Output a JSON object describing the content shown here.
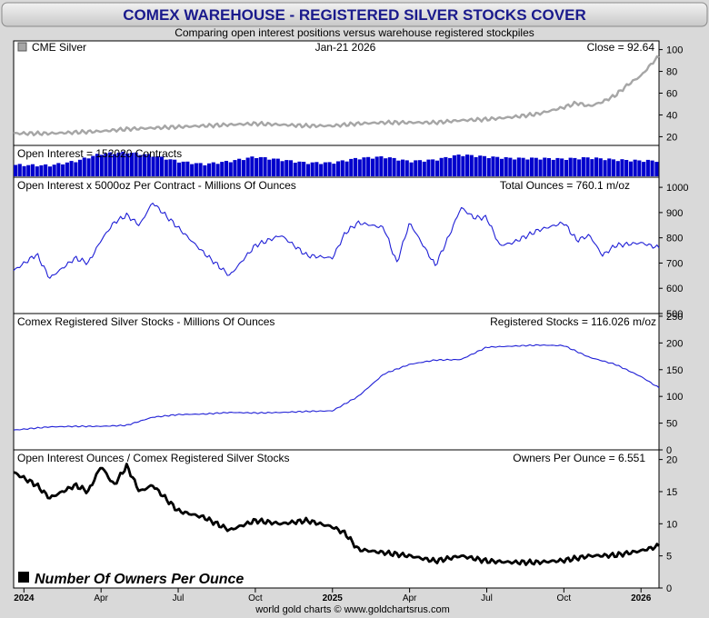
{
  "header": {
    "title": "COMEX WAREHOUSE - REGISTERED SILVER STOCKS COVER",
    "subtitle": "Comparing open interest positions versus warehouse registered stockpiles",
    "footer": "world gold charts © www.goldchartsrus.com"
  },
  "colors": {
    "title_text": "#1a1a8c",
    "silver_line": "#a6a6a6",
    "open_interest_bars": "#0000cc",
    "total_ounces_line": "#1f1fd6",
    "registered_line": "#1f1fd6",
    "owners_line": "#000000"
  },
  "x_axis": {
    "tick_labels": [
      "2024",
      "Apr",
      "Jul",
      "Oct",
      "2025",
      "Apr",
      "Jul",
      "Oct",
      "2026"
    ],
    "tick_positions": [
      0,
      3,
      6,
      9,
      12,
      15,
      18,
      21,
      24
    ],
    "range_months": [
      -0.4,
      24.7
    ]
  },
  "chart_data": [
    {
      "type": "line",
      "panel": "silver",
      "series_label": "CME Silver",
      "date_label": "Jan-21  2026",
      "summary_label": "Close = 92.64",
      "y_ticks": [
        "20",
        "40",
        "60",
        "80",
        "100"
      ],
      "ylim": [
        12,
        108
      ],
      "x": [
        -0.4,
        1,
        2,
        3,
        4,
        5,
        6,
        7,
        8,
        9,
        10,
        11,
        12,
        13,
        14,
        15,
        16,
        17,
        18,
        19,
        20,
        21,
        21.5,
        22,
        22.5,
        23,
        23.5,
        24,
        24.3,
        24.6,
        24.7
      ],
      "values": [
        23,
        23,
        24,
        25,
        27,
        28,
        29,
        30,
        31,
        32,
        31,
        30,
        30,
        32,
        33,
        33,
        33,
        35,
        36,
        38,
        41,
        47,
        51,
        48,
        52,
        58,
        68,
        76,
        84,
        92,
        92.64
      ]
    },
    {
      "type": "bar",
      "panel": "open-interest",
      "summary_label": "Open Interest = 152020 Contracts",
      "x": [
        -0.4,
        1,
        2,
        3,
        4,
        5,
        6,
        7,
        8,
        9,
        10,
        11,
        12,
        13,
        14,
        15,
        16,
        17,
        18,
        19,
        20,
        21,
        22,
        23,
        24,
        24.7
      ],
      "values": [
        138000,
        136000,
        150000,
        175000,
        180000,
        170000,
        150000,
        140000,
        150000,
        165000,
        155000,
        145000,
        145000,
        160000,
        165000,
        150000,
        155000,
        172000,
        165000,
        160000,
        160000,
        158000,
        162000,
        155000,
        152000,
        152020
      ]
    },
    {
      "type": "line",
      "panel": "total-ounces",
      "series_label": "Open Interest x 5000oz Per Contract - Millions Of Ounces",
      "summary_label": "Total Ounces = 760.1 m/oz",
      "y_ticks": [
        "500",
        "600",
        "700",
        "800",
        "900",
        "1000"
      ],
      "ylim": [
        500,
        1040
      ],
      "x": [
        -0.4,
        0.5,
        1,
        2,
        2.5,
        3,
        3.5,
        4,
        4.5,
        5,
        6,
        7,
        8,
        9,
        10,
        11,
        12,
        12.5,
        13,
        14,
        14.5,
        15,
        16,
        16.5,
        17,
        17.5,
        18,
        18.5,
        19,
        20,
        21,
        21.5,
        22,
        22.5,
        23,
        24,
        24.7
      ],
      "values": [
        670,
        735,
        640,
        720,
        700,
        790,
        860,
        890,
        850,
        940,
        840,
        740,
        650,
        770,
        810,
        730,
        720,
        820,
        860,
        840,
        700,
        860,
        690,
        800,
        920,
        880,
        880,
        770,
        780,
        830,
        860,
        790,
        810,
        730,
        770,
        780,
        760.1
      ]
    },
    {
      "type": "line",
      "panel": "registered-stocks",
      "series_label": "Comex Registered Silver Stocks - Millions Of Ounces",
      "summary_label": "Registered Stocks = 116.026 m/oz",
      "y_ticks": [
        "0",
        "50",
        "100",
        "150",
        "200",
        "250"
      ],
      "ylim": [
        0,
        255
      ],
      "x": [
        -0.4,
        1,
        2,
        3,
        4,
        5,
        6,
        7,
        8,
        9,
        10,
        11,
        12,
        13,
        14,
        15,
        16,
        17,
        18,
        19,
        20,
        21,
        22,
        23,
        24,
        24.7
      ],
      "values": [
        37,
        43,
        44,
        44,
        46,
        61,
        66,
        67,
        70,
        69,
        70,
        72,
        73,
        100,
        142,
        160,
        168,
        169,
        192,
        194,
        196,
        195,
        173,
        160,
        137,
        116.026
      ]
    },
    {
      "type": "line",
      "panel": "owners-per-ounce",
      "series_label": "Open Interest Ounces / Comex Registered Silver Stocks",
      "summary_label": "Owners Per Ounce = 6.551",
      "legend_label": "Number Of Owners Per Ounce",
      "y_ticks": [
        "0",
        "5",
        "10",
        "15",
        "20"
      ],
      "ylim": [
        0,
        21.5
      ],
      "x": [
        -0.4,
        0.5,
        1,
        2,
        2.5,
        3,
        3.5,
        4,
        4.5,
        5,
        6,
        7,
        8,
        9,
        10,
        11,
        12,
        12.5,
        13,
        14,
        15,
        16,
        17,
        18,
        19,
        20,
        21,
        22,
        23,
        24,
        24.7
      ],
      "values": [
        18,
        16,
        14,
        16,
        15,
        19,
        16,
        19,
        15,
        16,
        12,
        11,
        9,
        10.5,
        10,
        10.5,
        9.5,
        8.5,
        6,
        5.5,
        5,
        4.2,
        5,
        4.2,
        4,
        4,
        4.3,
        5,
        5.1,
        5.8,
        6.551
      ]
    }
  ]
}
